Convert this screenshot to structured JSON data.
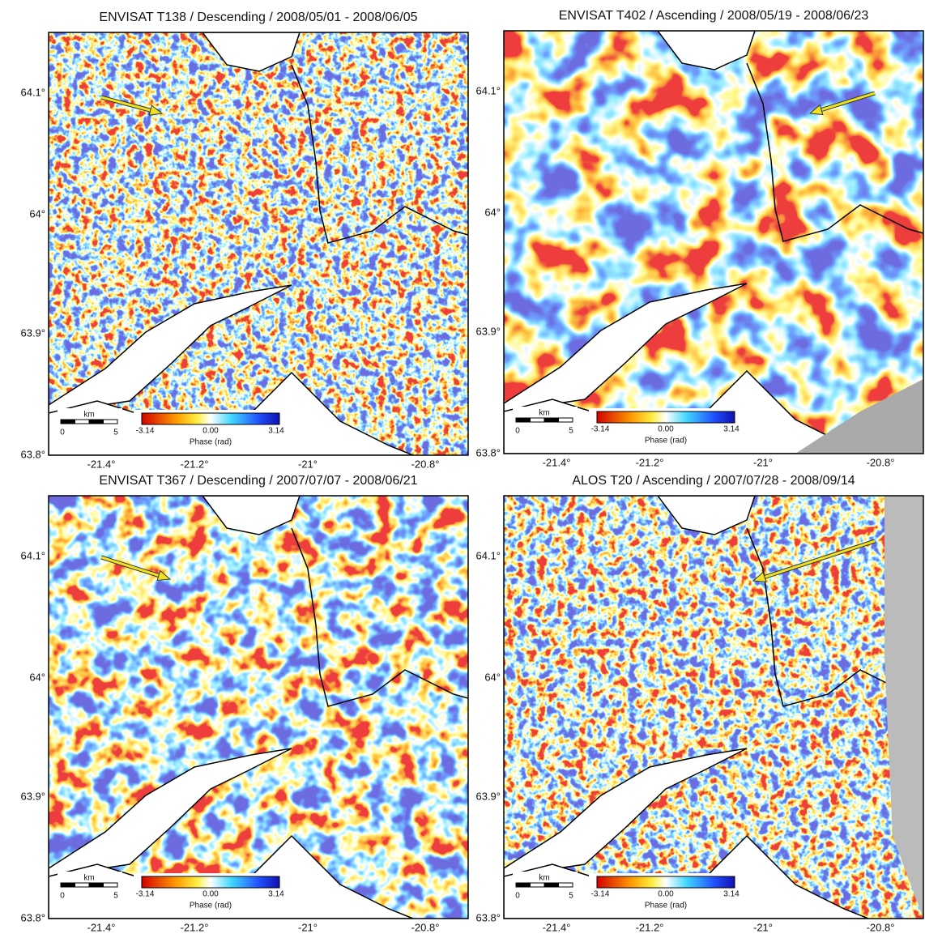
{
  "panels": [
    {
      "title": "ENVISAT T138 / Descending / 2008/05/01 - 2008/06/05",
      "lat_labels": [
        "64.1°",
        "64°",
        "63.9°",
        "63.8°"
      ],
      "lon_labels": [
        "-21.4°",
        "-21.2°",
        "-21°",
        "-20.8°"
      ],
      "colorbar": {
        "min": "-3.14",
        "mid": "0.00",
        "max": "3.14",
        "label": "Phase (rad)"
      },
      "scalebar": {
        "unit": "km",
        "start": "0",
        "end": "5"
      }
    },
    {
      "title": "ENVISAT T402 / Ascending / 2008/05/19 - 2008/06/23",
      "lat_labels": [
        "64.1°",
        "64°",
        "63.9°",
        "63.8°"
      ],
      "lon_labels": [
        "-21.4°",
        "-21.2°",
        "-21°",
        "-20.8°"
      ],
      "colorbar": {
        "min": "-3.14",
        "mid": "0.00",
        "max": "3.14",
        "label": "Phase (rad)"
      },
      "scalebar": {
        "unit": "km",
        "start": "0",
        "end": "5"
      }
    },
    {
      "title": "ENVISAT T367 / Descending / 2007/07/07 - 2008/06/21",
      "lat_labels": [
        "64.1°",
        "64°",
        "63.9°",
        "63.8°"
      ],
      "lon_labels": [
        "-21.4°",
        "-21.2°",
        "-21°",
        "-20.8°"
      ],
      "colorbar": {
        "min": "-3.14",
        "mid": "0.00",
        "max": "3.14",
        "label": "Phase (rad)"
      },
      "scalebar": {
        "unit": "km",
        "start": "0",
        "end": "5"
      }
    },
    {
      "title": "ALOS T20 / Ascending / 2007/07/28 - 2008/09/14",
      "lat_labels": [
        "64.1°",
        "64°",
        "63.9°",
        "63.8°"
      ],
      "lon_labels": [
        "-21.4°",
        "-21.2°",
        "-21°",
        "-20.8°"
      ],
      "colorbar": {
        "min": "-3.14",
        "mid": "0.00",
        "max": "3.14",
        "label": "Phase (rad)"
      },
      "scalebar": {
        "unit": "km",
        "start": "0",
        "end": "5"
      }
    }
  ]
}
